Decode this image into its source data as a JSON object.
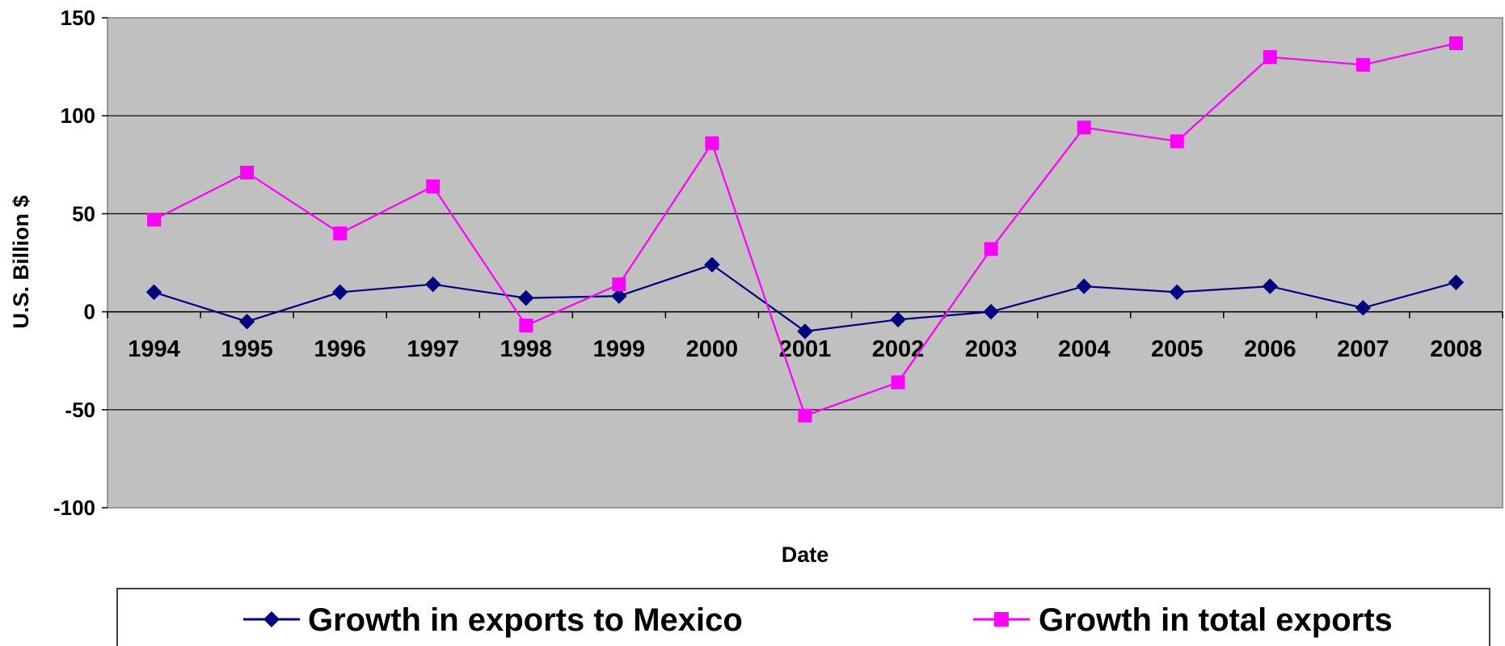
{
  "chart_data": {
    "type": "line",
    "title": "",
    "xlabel": "Date",
    "ylabel": "U.S. Billion $",
    "ylim": [
      -100,
      150
    ],
    "yticks": [
      150,
      100,
      50,
      0,
      -50,
      -100
    ],
    "ytick_labels": [
      "150",
      "100",
      "50",
      "0",
      "-50",
      "-100"
    ],
    "categories": [
      "1994",
      "1995",
      "1996",
      "1997",
      "1998",
      "1999",
      "2000",
      "2001",
      "2002",
      "2003",
      "2004",
      "2005",
      "2006",
      "2007",
      "2008"
    ],
    "grid": "horizontal",
    "plot_background": "#c0c0c0",
    "legend_position": "bottom",
    "series": [
      {
        "name": "Growth in exports to Mexico",
        "color": "#000080",
        "marker": "diamond",
        "values": [
          10,
          -5,
          10,
          14,
          7,
          8,
          24,
          -10,
          -4,
          0,
          13,
          10,
          13,
          2,
          15
        ]
      },
      {
        "name": "Growth in total exports",
        "color": "#ff00ff",
        "marker": "square",
        "values": [
          47,
          71,
          40,
          64,
          -7,
          14,
          86,
          -53,
          -36,
          32,
          94,
          87,
          130,
          126,
          137
        ]
      }
    ]
  }
}
